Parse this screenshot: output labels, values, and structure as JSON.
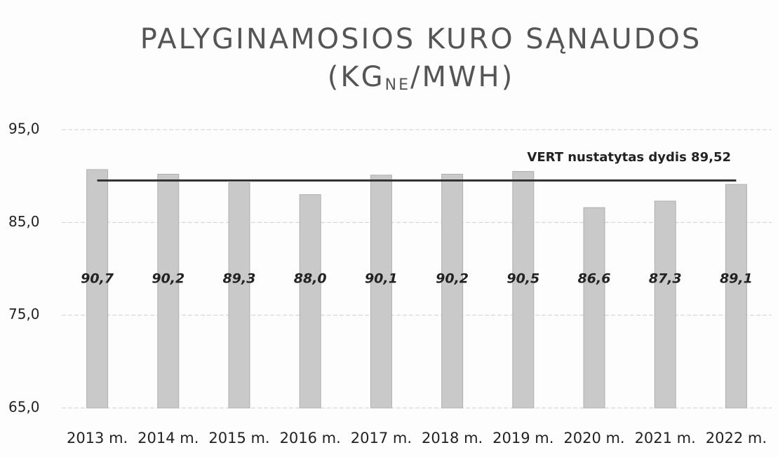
{
  "chart_data": {
    "type": "bar",
    "title": "PALYGINAMOSIOS KURO SĄNAUDOS",
    "unit": {
      "base": "(KG",
      "sub": "NE",
      "rest": "/MWH)"
    },
    "categories": [
      "2013 m.",
      "2014 m.",
      "2015 m.",
      "2016 m.",
      "2017 m.",
      "2018 m.",
      "2019 m.",
      "2020 m.",
      "2021 m.",
      "2022 m."
    ],
    "values": [
      90.7,
      90.2,
      89.3,
      88.0,
      90.1,
      90.2,
      90.5,
      86.6,
      87.3,
      89.1
    ],
    "value_labels": [
      "90,7",
      "90,2",
      "89,3",
      "88,0",
      "90,1",
      "90,2",
      "90,5",
      "86,6",
      "87,3",
      "89,1"
    ],
    "color": "#c9c9c9",
    "reference": {
      "value": 89.52,
      "label": "VERT nustatytas dydis 89,52",
      "color": "#333333"
    },
    "ylim": [
      65,
      95
    ],
    "yticks": [
      {
        "value": 65,
        "label": "65,0"
      },
      {
        "value": 75,
        "label": "75,0"
      },
      {
        "value": 85,
        "label": "85,0"
      },
      {
        "value": 95,
        "label": "95,0"
      }
    ],
    "grid": true
  }
}
